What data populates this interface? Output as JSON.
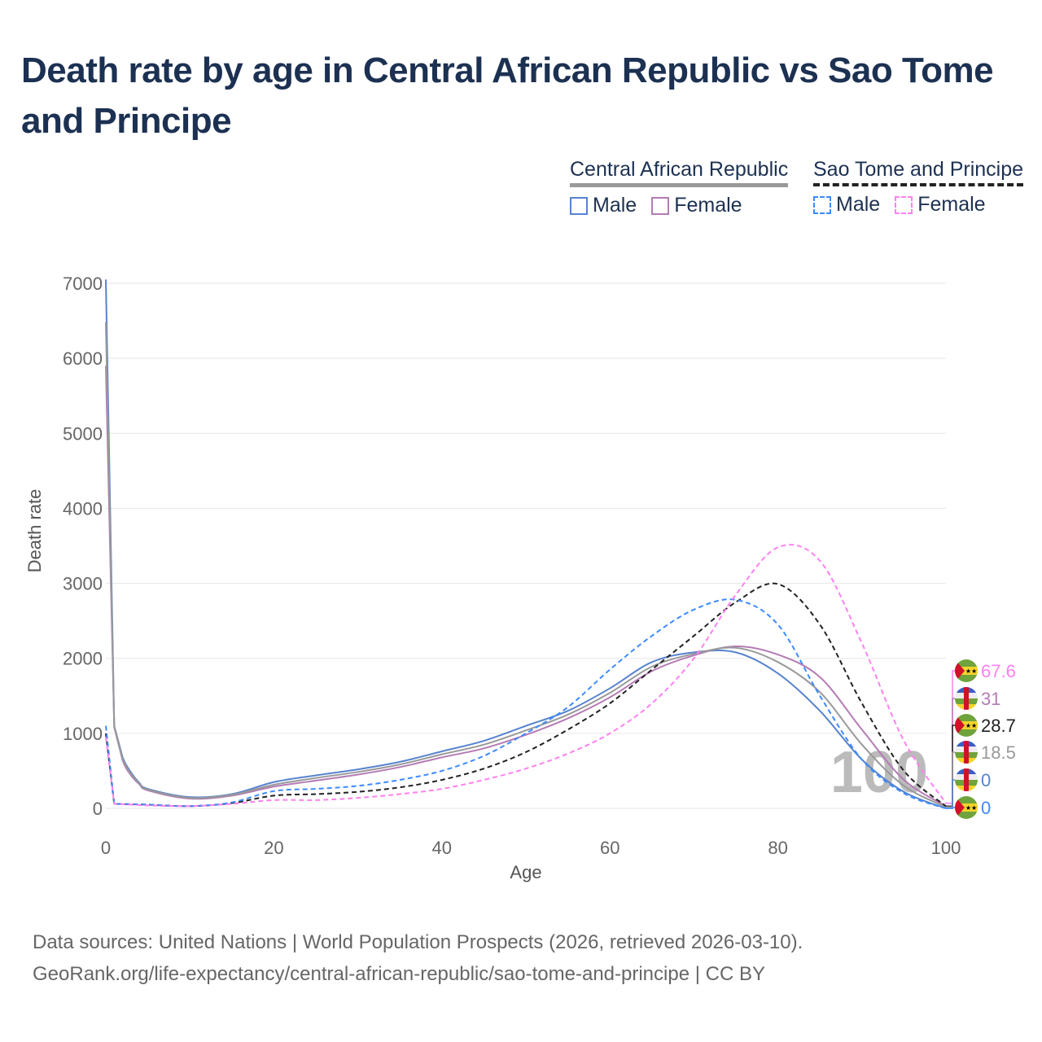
{
  "title": "Death rate by age in Central African Republic vs Sao Tome and Principe",
  "legend": {
    "groups": [
      {
        "name": "Central African Republic",
        "items": [
          {
            "label": "Male",
            "color": "#5683cf"
          },
          {
            "label": "Female",
            "color": "#b57bb5"
          }
        ]
      },
      {
        "name": "Sao Tome and Principe",
        "items": [
          {
            "label": "Male",
            "color": "#3d8bff"
          },
          {
            "label": "Female",
            "color": "#ff80f0"
          }
        ]
      }
    ]
  },
  "watermark": "100",
  "footer": {
    "line1": "Data sources: United Nations | World Population Prospects (2026, retrieved 2026-03-10).",
    "line2": "GeoRank.org/life-expectancy/central-african-republic/sao-tome-and-principe | CC BY"
  },
  "chart_data": {
    "type": "line",
    "title": "Death rate by age in Central African Republic vs Sao Tome and Principe",
    "xlabel": "Age",
    "ylabel": "Death rate",
    "xlim": [
      0,
      100
    ],
    "ylim": [
      0,
      7000
    ],
    "xticks": [
      "0",
      "20",
      "40",
      "60",
      "80",
      "100"
    ],
    "yticks": [
      "0",
      "1000",
      "2000",
      "3000",
      "4000",
      "5000",
      "6000",
      "7000"
    ],
    "grid": true,
    "x": [
      0,
      1,
      2,
      3,
      4,
      5,
      10,
      15,
      20,
      25,
      30,
      35,
      40,
      45,
      50,
      55,
      60,
      65,
      70,
      75,
      80,
      85,
      90,
      95,
      100
    ],
    "series": [
      {
        "name": "Central African Republic - Male",
        "color": "#5683cf",
        "dash": false,
        "end_label": "0",
        "flag": "CAF",
        "values": [
          7050,
          1100,
          680,
          480,
          340,
          260,
          150,
          190,
          350,
          440,
          520,
          620,
          760,
          900,
          1100,
          1300,
          1600,
          1950,
          2080,
          2080,
          1800,
          1300,
          650,
          220,
          0
        ]
      },
      {
        "name": "Central African Republic - Female",
        "color": "#b57bb5",
        "dash": false,
        "end_label": "31",
        "flag": "CAF",
        "values": [
          5900,
          1080,
          640,
          440,
          320,
          240,
          130,
          170,
          290,
          370,
          450,
          550,
          680,
          800,
          980,
          1200,
          1480,
          1830,
          2040,
          2160,
          2050,
          1750,
          1050,
          380,
          31
        ]
      },
      {
        "name": "Central African Republic - Total",
        "color": "#999999",
        "dash": false,
        "end_label": "18.5",
        "flag": "CAF",
        "values": [
          6480,
          1090,
          660,
          460,
          330,
          250,
          140,
          180,
          315,
          405,
          485,
          585,
          720,
          850,
          1040,
          1250,
          1540,
          1890,
          2060,
          2140,
          1950,
          1550,
          850,
          300,
          18.5
        ]
      },
      {
        "name": "Sao Tome and Principe - Total",
        "color": "#222222",
        "dash": true,
        "end_label": "28.7",
        "flag": "STP",
        "values": [
          1000,
          60,
          58,
          55,
          52,
          50,
          30,
          70,
          170,
          190,
          220,
          280,
          380,
          530,
          750,
          1050,
          1400,
          1850,
          2300,
          2750,
          2990,
          2450,
          1400,
          500,
          28.7
        ]
      },
      {
        "name": "Sao Tome and Principe - Male",
        "color": "#3d8bff",
        "dash": true,
        "end_label": "0",
        "flag": "STP",
        "values": [
          1100,
          60,
          58,
          55,
          52,
          50,
          30,
          80,
          230,
          260,
          300,
          380,
          500,
          700,
          1000,
          1350,
          1850,
          2300,
          2650,
          2780,
          2450,
          1500,
          650,
          200,
          0
        ]
      },
      {
        "name": "Sao Tome and Principe - Female",
        "color": "#ff80f0",
        "dash": true,
        "end_label": "67.6",
        "flag": "STP",
        "values": [
          950,
          60,
          55,
          50,
          45,
          40,
          30,
          60,
          110,
          110,
          140,
          190,
          260,
          380,
          530,
          730,
          1000,
          1400,
          2000,
          2850,
          3480,
          3300,
          2200,
          900,
          67.6
        ]
      }
    ],
    "end_labels_order": [
      5,
      1,
      3,
      2,
      0,
      4
    ]
  }
}
